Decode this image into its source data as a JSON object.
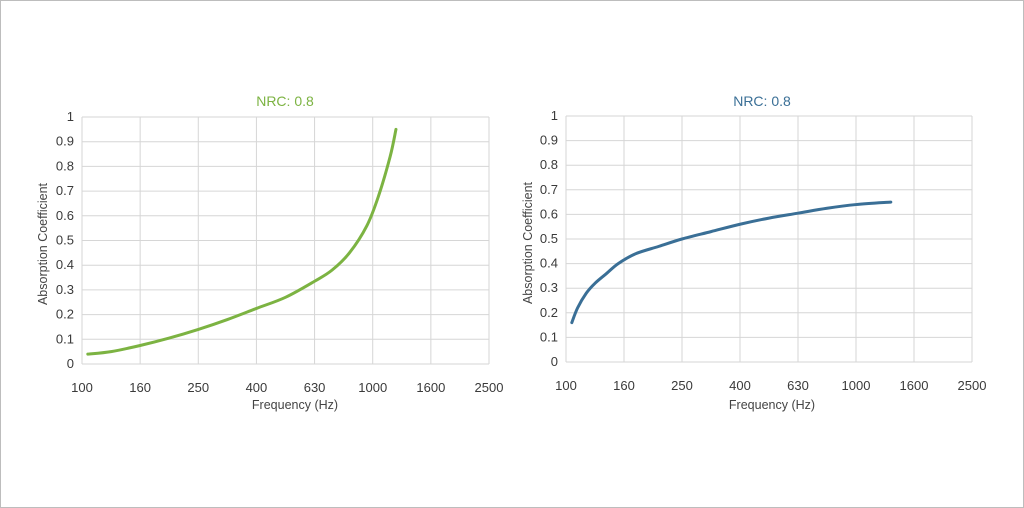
{
  "chart_data": [
    {
      "type": "line",
      "title": "NRC: 0.8",
      "xlabel": "Frequency (Hz)",
      "ylabel": "Absorption Coefficient",
      "x_categories": [
        "100",
        "160",
        "250",
        "400",
        "630",
        "1000",
        "1600",
        "2500"
      ],
      "y_ticks": [
        "0",
        "0.1",
        "0.2",
        "0.3",
        "0.4",
        "0.5",
        "0.6",
        "0.7",
        "0.8",
        "0.9",
        "1"
      ],
      "ylim": [
        0,
        1
      ],
      "color": "#7cb342",
      "grid": true,
      "series": [
        {
          "x_index": [
            0.1,
            0.5,
            1.0,
            1.5,
            2.0,
            2.5,
            3.0,
            3.5,
            4.0,
            4.3,
            4.6,
            4.9,
            5.1,
            5.3,
            5.4
          ],
          "y": [
            0.04,
            0.05,
            0.075,
            0.105,
            0.14,
            0.18,
            0.225,
            0.27,
            0.335,
            0.38,
            0.45,
            0.56,
            0.68,
            0.84,
            0.95
          ]
        }
      ]
    },
    {
      "type": "line",
      "title": "NRC: 0.8",
      "xlabel": "Frequency (Hz)",
      "ylabel": "Absorption Coefficient",
      "x_categories": [
        "100",
        "160",
        "250",
        "400",
        "630",
        "1000",
        "1600",
        "2500"
      ],
      "y_ticks": [
        "0",
        "0.1",
        "0.2",
        "0.3",
        "0.4",
        "0.5",
        "0.6",
        "0.7",
        "0.8",
        "0.9",
        "1"
      ],
      "ylim": [
        0,
        1
      ],
      "color": "#3a6f96",
      "grid": true,
      "series": [
        {
          "x_index": [
            0.1,
            0.2,
            0.35,
            0.5,
            0.7,
            0.9,
            1.2,
            1.6,
            2.0,
            2.5,
            3.0,
            3.5,
            4.0,
            4.5,
            5.0,
            5.6
          ],
          "y": [
            0.16,
            0.22,
            0.28,
            0.32,
            0.36,
            0.4,
            0.44,
            0.47,
            0.5,
            0.53,
            0.56,
            0.585,
            0.605,
            0.625,
            0.64,
            0.65
          ]
        }
      ]
    }
  ]
}
